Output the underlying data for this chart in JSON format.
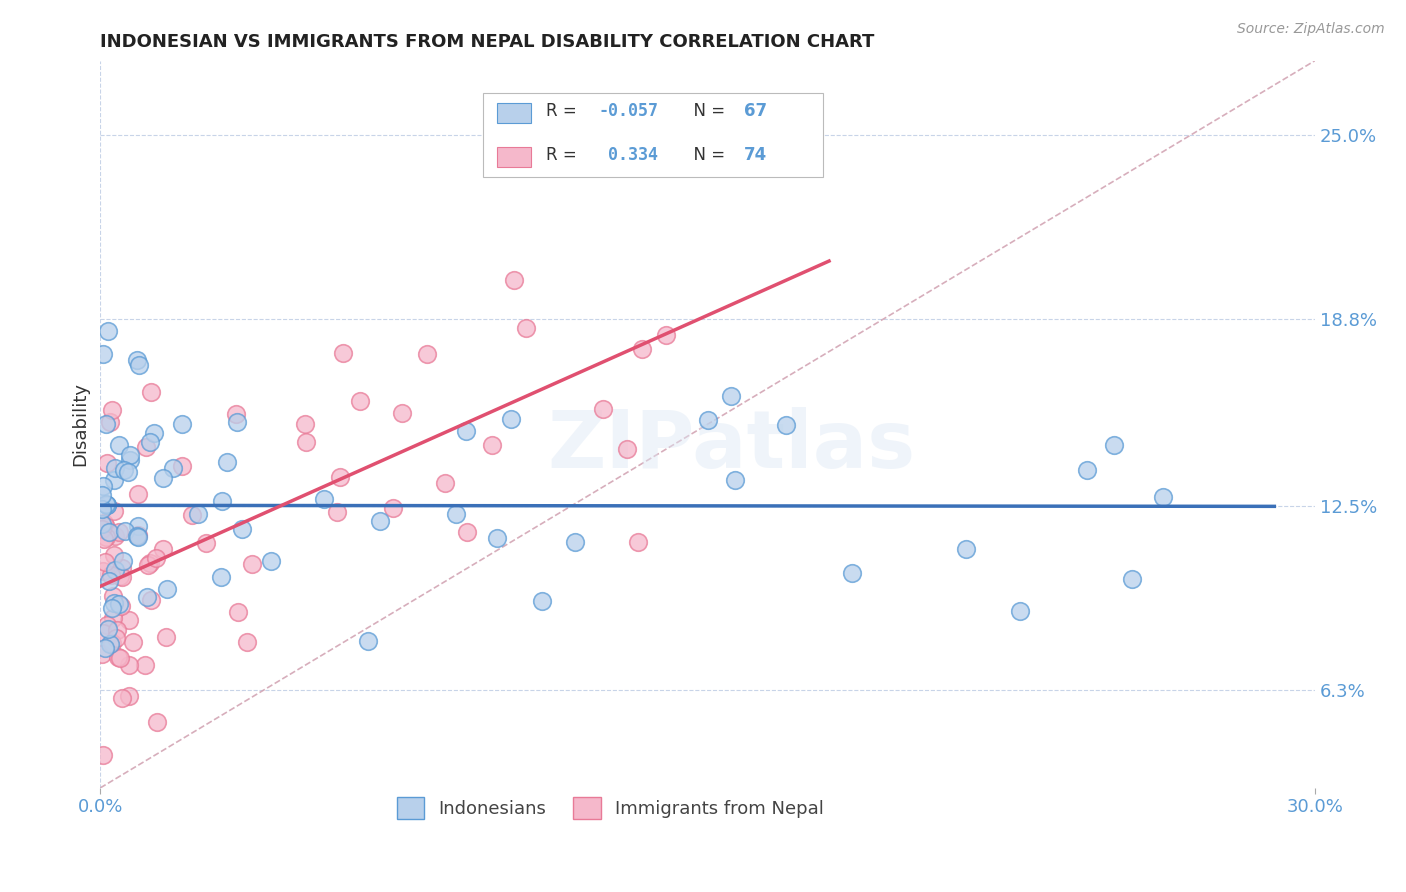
{
  "title": "INDONESIAN VS IMMIGRANTS FROM NEPAL DISABILITY CORRELATION CHART",
  "source": "Source: ZipAtlas.com",
  "ylabel": "Disability",
  "xlim": [
    0.0,
    30.0
  ],
  "ylim": [
    3.0,
    27.5
  ],
  "yticks": [
    6.3,
    12.5,
    18.8,
    25.0
  ],
  "xtick_labels": [
    "0.0%",
    "30.0%"
  ],
  "ytick_labels": [
    "6.3%",
    "12.5%",
    "18.8%",
    "25.0%"
  ],
  "r_blue": -0.057,
  "n_blue": 67,
  "r_pink": 0.334,
  "n_pink": 74,
  "blue_fill": "#b8d0eb",
  "pink_fill": "#f5b8cb",
  "blue_edge": "#5b9bd5",
  "pink_edge": "#e87a97",
  "trend_blue": "#3a70b8",
  "trend_pink": "#e05070",
  "diagonal_color": "#d0a0b0",
  "watermark_text": "ZIPatlas",
  "bg_color": "#ffffff",
  "grid_color": "#c8d4e8",
  "title_color": "#222222",
  "tick_color": "#5b9bd5",
  "ylabel_color": "#333333",
  "legend_text_color": "#5b9bd5",
  "legend_r_color_blue": "#e05070",
  "legend_r_color_pink": "#5b9bd5",
  "source_color": "#999999",
  "bottom_legend_color": "#444444"
}
